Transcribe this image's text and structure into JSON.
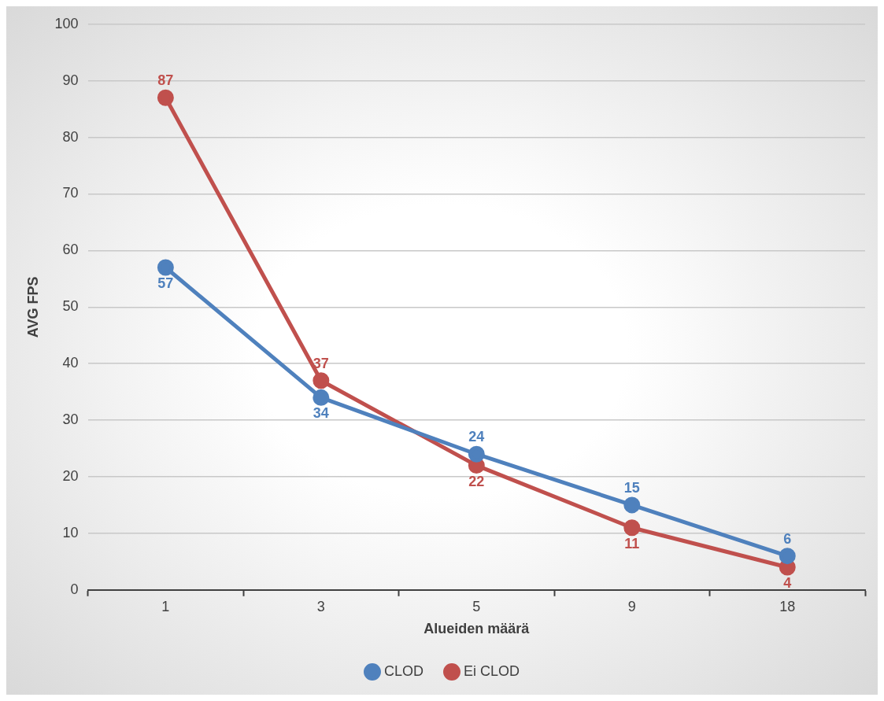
{
  "chart_data": {
    "type": "line",
    "xlabel": "Alueiden määrä",
    "ylabel": "AVG FPS",
    "categories": [
      "1",
      "3",
      "5",
      "9",
      "18"
    ],
    "series": [
      {
        "name": "CLOD",
        "color": "#4f81bd",
        "values": [
          57,
          34,
          24,
          15,
          6
        ]
      },
      {
        "name": "Ei CLOD",
        "color": "#c0504d",
        "values": [
          87,
          37,
          22,
          11,
          4
        ]
      }
    ],
    "ylim": [
      0,
      100
    ],
    "yticks": [
      0,
      10,
      20,
      30,
      40,
      50,
      60,
      70,
      80,
      90,
      100
    ],
    "grid": "y",
    "legend": "bottom",
    "marker": "circle",
    "line_style": "solid",
    "data_labels": true
  }
}
